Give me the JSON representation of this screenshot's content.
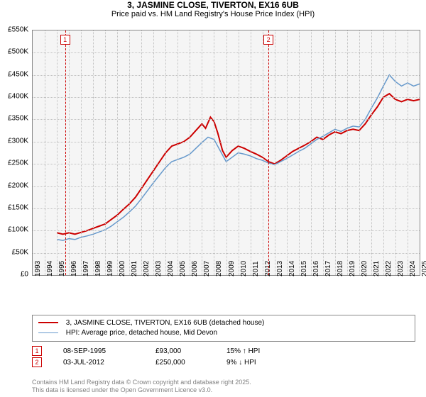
{
  "title": "3, JASMINE CLOSE, TIVERTON, EX16 6UB",
  "subtitle": "Price paid vs. HM Land Registry's House Price Index (HPI)",
  "chart": {
    "type": "line",
    "background_color": "#f5f5f5",
    "grid_color": "#c0c0c0",
    "y": {
      "min": 0,
      "max": 550,
      "step": 50,
      "format_prefix": "£",
      "format_suffix": "K",
      "zero_label": "£0"
    },
    "x": {
      "min": 1993,
      "max": 2025,
      "step": 1
    },
    "series": [
      {
        "name": "3, JASMINE CLOSE, TIVERTON, EX16 6UB (detached house)",
        "color": "#cc0000",
        "width": 2,
        "points": [
          [
            1995.0,
            95
          ],
          [
            1995.5,
            92
          ],
          [
            1996.0,
            95
          ],
          [
            1996.5,
            92
          ],
          [
            1997.0,
            96
          ],
          [
            1997.5,
            100
          ],
          [
            1998.0,
            105
          ],
          [
            1998.5,
            110
          ],
          [
            1999.0,
            115
          ],
          [
            1999.5,
            125
          ],
          [
            2000.0,
            135
          ],
          [
            2000.5,
            148
          ],
          [
            2001.0,
            160
          ],
          [
            2001.5,
            175
          ],
          [
            2002.0,
            195
          ],
          [
            2002.5,
            215
          ],
          [
            2003.0,
            235
          ],
          [
            2003.5,
            255
          ],
          [
            2004.0,
            275
          ],
          [
            2004.5,
            290
          ],
          [
            2005.0,
            295
          ],
          [
            2005.5,
            300
          ],
          [
            2006.0,
            310
          ],
          [
            2006.5,
            325
          ],
          [
            2007.0,
            340
          ],
          [
            2007.3,
            330
          ],
          [
            2007.7,
            355
          ],
          [
            2008.0,
            345
          ],
          [
            2008.3,
            320
          ],
          [
            2008.7,
            280
          ],
          [
            2009.0,
            265
          ],
          [
            2009.5,
            280
          ],
          [
            2010.0,
            290
          ],
          [
            2010.5,
            285
          ],
          [
            2011.0,
            278
          ],
          [
            2011.5,
            272
          ],
          [
            2012.0,
            265
          ],
          [
            2012.5,
            255
          ],
          [
            2013.0,
            250
          ],
          [
            2013.5,
            258
          ],
          [
            2014.0,
            268
          ],
          [
            2014.5,
            278
          ],
          [
            2015.0,
            285
          ],
          [
            2015.5,
            292
          ],
          [
            2016.0,
            300
          ],
          [
            2016.5,
            310
          ],
          [
            2017.0,
            305
          ],
          [
            2017.5,
            315
          ],
          [
            2018.0,
            322
          ],
          [
            2018.5,
            318
          ],
          [
            2019.0,
            325
          ],
          [
            2019.5,
            328
          ],
          [
            2020.0,
            325
          ],
          [
            2020.5,
            340
          ],
          [
            2021.0,
            360
          ],
          [
            2021.5,
            378
          ],
          [
            2022.0,
            400
          ],
          [
            2022.5,
            408
          ],
          [
            2023.0,
            395
          ],
          [
            2023.5,
            390
          ],
          [
            2024.0,
            395
          ],
          [
            2024.5,
            392
          ],
          [
            2025.0,
            395
          ]
        ]
      },
      {
        "name": "HPI: Average price, detached house, Mid Devon",
        "color": "#6699cc",
        "width": 1.5,
        "points": [
          [
            1995.0,
            80
          ],
          [
            1995.5,
            78
          ],
          [
            1996.0,
            82
          ],
          [
            1996.5,
            80
          ],
          [
            1997.0,
            85
          ],
          [
            1997.5,
            88
          ],
          [
            1998.0,
            92
          ],
          [
            1998.5,
            97
          ],
          [
            1999.0,
            102
          ],
          [
            1999.5,
            110
          ],
          [
            2000.0,
            120
          ],
          [
            2000.5,
            130
          ],
          [
            2001.0,
            142
          ],
          [
            2001.5,
            155
          ],
          [
            2002.0,
            172
          ],
          [
            2002.5,
            190
          ],
          [
            2003.0,
            208
          ],
          [
            2003.5,
            225
          ],
          [
            2004.0,
            242
          ],
          [
            2004.5,
            255
          ],
          [
            2005.0,
            260
          ],
          [
            2005.5,
            265
          ],
          [
            2006.0,
            272
          ],
          [
            2006.5,
            285
          ],
          [
            2007.0,
            298
          ],
          [
            2007.5,
            310
          ],
          [
            2008.0,
            305
          ],
          [
            2008.5,
            280
          ],
          [
            2009.0,
            255
          ],
          [
            2009.5,
            265
          ],
          [
            2010.0,
            275
          ],
          [
            2010.5,
            272
          ],
          [
            2011.0,
            268
          ],
          [
            2011.5,
            262
          ],
          [
            2012.0,
            258
          ],
          [
            2012.5,
            252
          ],
          [
            2013.0,
            248
          ],
          [
            2013.5,
            255
          ],
          [
            2014.0,
            262
          ],
          [
            2014.5,
            270
          ],
          [
            2015.0,
            278
          ],
          [
            2015.5,
            285
          ],
          [
            2016.0,
            295
          ],
          [
            2016.5,
            305
          ],
          [
            2017.0,
            312
          ],
          [
            2017.5,
            320
          ],
          [
            2018.0,
            328
          ],
          [
            2018.5,
            323
          ],
          [
            2019.0,
            330
          ],
          [
            2019.5,
            335
          ],
          [
            2020.0,
            333
          ],
          [
            2020.5,
            350
          ],
          [
            2021.0,
            375
          ],
          [
            2021.5,
            398
          ],
          [
            2022.0,
            425
          ],
          [
            2022.5,
            450
          ],
          [
            2023.0,
            435
          ],
          [
            2023.5,
            425
          ],
          [
            2024.0,
            432
          ],
          [
            2024.5,
            425
          ],
          [
            2025.0,
            430
          ]
        ]
      }
    ],
    "markers": [
      {
        "label": "1",
        "x": 1995.68,
        "date": "08-SEP-1995",
        "price": "£93,000",
        "hpi": "15% ↑ HPI"
      },
      {
        "label": "2",
        "x": 2012.5,
        "date": "03-JUL-2012",
        "price": "£250,000",
        "hpi": "9% ↓ HPI"
      }
    ]
  },
  "footer_line1": "Contains HM Land Registry data © Crown copyright and database right 2025.",
  "footer_line2": "This data is licensed under the Open Government Licence v3.0."
}
